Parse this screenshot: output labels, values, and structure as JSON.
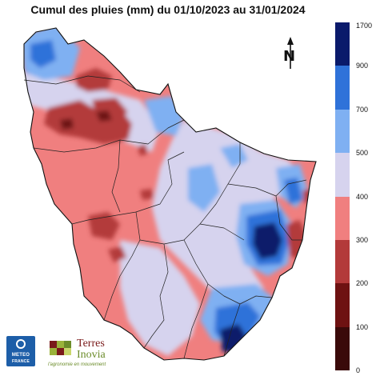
{
  "title": "Cumul des pluies (mm) du 01/10/2023 au 31/01/2024",
  "legend": {
    "ticks": [
      "1700",
      "900",
      "700",
      "500",
      "400",
      "300",
      "200",
      "100",
      "0"
    ],
    "classes": [
      {
        "from": 0,
        "to": 100,
        "color": "#3a0a0a"
      },
      {
        "from": 100,
        "to": 200,
        "color": "#6e1212"
      },
      {
        "from": 200,
        "to": 300,
        "color": "#b33a3a"
      },
      {
        "from": 300,
        "to": 400,
        "color": "#f07f7f"
      },
      {
        "from": 400,
        "to": 500,
        "color": "#d6d3ee"
      },
      {
        "from": 500,
        "to": 700,
        "color": "#7fb0f2"
      },
      {
        "from": 700,
        "to": 900,
        "color": "#2f72d9"
      },
      {
        "from": 900,
        "to": 1700,
        "color": "#0a1a6b"
      }
    ]
  },
  "north_arrow": {
    "letter": "N",
    "icon": "north-arrow-icon"
  },
  "logos": {
    "meteo_france": {
      "line1": "METEO",
      "line2": "FRANCE"
    },
    "terres_inovia": {
      "word1": "Terres",
      "word2": "Inovia",
      "tagline": "l'agronomie en mouvement"
    }
  }
}
